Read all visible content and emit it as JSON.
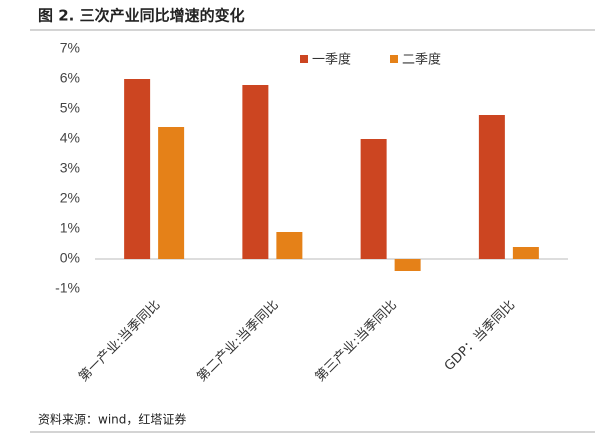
{
  "chart_data": {
    "type": "bar",
    "title": "图 2. 三次产业同比增速的变化",
    "categories": [
      "第一产业:当季同比",
      "第二产业:当季同比",
      "第三产业:当季同比",
      "GDP：当季同比"
    ],
    "series": [
      {
        "name": "一季度",
        "color": "#cc4521",
        "values": [
          6.0,
          5.8,
          4.0,
          4.8
        ]
      },
      {
        "name": "二季度",
        "color": "#e58118",
        "values": [
          4.4,
          0.9,
          -0.4,
          0.4
        ]
      }
    ],
    "ylim": [
      -1,
      7
    ],
    "yticks": [
      {
        "value": -1,
        "label": "-1%"
      },
      {
        "value": 0,
        "label": "0%"
      },
      {
        "value": 1,
        "label": "1%"
      },
      {
        "value": 2,
        "label": "2%"
      },
      {
        "value": 3,
        "label": "3%"
      },
      {
        "value": 4,
        "label": "4%"
      },
      {
        "value": 5,
        "label": "5%"
      },
      {
        "value": 6,
        "label": "6%"
      },
      {
        "value": 7,
        "label": "7%"
      }
    ],
    "source": "资料来源：wind，红塔证券"
  }
}
